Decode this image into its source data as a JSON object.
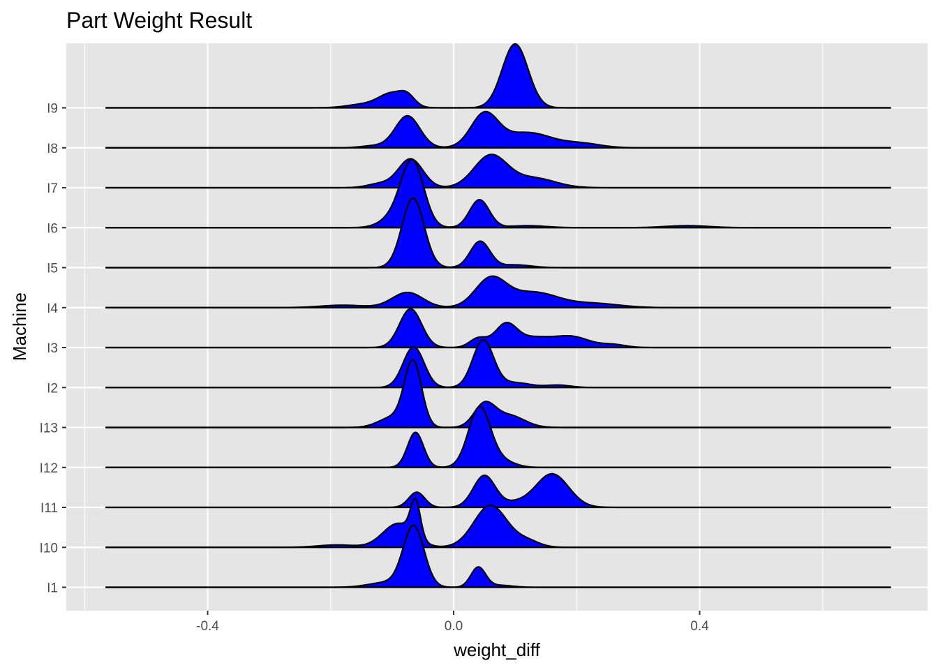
{
  "chart_data": {
    "type": "ridgeline",
    "title": "Part Weight Result",
    "xlabel": "weight_diff",
    "ylabel": "Machine",
    "x_ticks": [
      -0.4,
      0.0,
      0.4
    ],
    "x_tick_labels": [
      "-0.4",
      "0.0",
      "0.4"
    ],
    "xlim": [
      -0.64,
      0.76
    ],
    "x_extent": [
      -0.566,
      0.711
    ],
    "grid": true,
    "fill_color": "#0000ff",
    "panel_color": "#e5e5e5",
    "grid_color": "#ffffff",
    "categories": [
      "I1",
      "I10",
      "I11",
      "I12",
      "I13",
      "I2",
      "I3",
      "I4",
      "I5",
      "I6",
      "I7",
      "I8",
      "I9"
    ],
    "series": [
      {
        "label": "I1",
        "peaks": [
          [
            -0.11,
            0.12,
            0.028
          ],
          [
            -0.065,
            1.52,
            0.017
          ],
          [
            0.04,
            0.5,
            0.012
          ],
          [
            0.075,
            0.05,
            0.02
          ]
        ]
      },
      {
        "label": "I10",
        "peaks": [
          [
            -0.19,
            0.06,
            0.03
          ],
          [
            -0.09,
            0.6,
            0.025
          ],
          [
            -0.062,
            0.9,
            0.008
          ],
          [
            0.06,
            1.05,
            0.027
          ],
          [
            0.12,
            0.15,
            0.02
          ]
        ]
      },
      {
        "label": "I11",
        "peaks": [
          [
            -0.06,
            0.38,
            0.013
          ],
          [
            0.05,
            0.8,
            0.018
          ],
          [
            0.16,
            0.84,
            0.027
          ],
          [
            0.1,
            0.1,
            0.02
          ]
        ]
      },
      {
        "label": "I12",
        "peaks": [
          [
            -0.062,
            0.88,
            0.013
          ],
          [
            0.042,
            1.5,
            0.018
          ],
          [
            0.08,
            0.15,
            0.02
          ]
        ]
      },
      {
        "label": "I13",
        "peaks": [
          [
            -0.1,
            0.25,
            0.022
          ],
          [
            -0.066,
            1.62,
            0.014
          ],
          [
            0.05,
            0.56,
            0.017
          ],
          [
            0.09,
            0.3,
            0.025
          ]
        ]
      },
      {
        "label": "I2",
        "peaks": [
          [
            -0.065,
            1.02,
            0.017
          ],
          [
            0.048,
            1.18,
            0.017
          ],
          [
            0.1,
            0.12,
            0.025
          ],
          [
            0.17,
            0.06,
            0.02
          ]
        ]
      },
      {
        "label": "I3",
        "peaks": [
          [
            -0.07,
            0.97,
            0.018
          ],
          [
            0.04,
            0.23,
            0.014
          ],
          [
            0.085,
            0.58,
            0.018
          ],
          [
            0.19,
            0.28,
            0.03
          ],
          [
            0.26,
            0.07,
            0.02
          ],
          [
            0.13,
            0.22,
            0.025
          ]
        ]
      },
      {
        "label": "I4",
        "peaks": [
          [
            -0.18,
            0.06,
            0.035
          ],
          [
            -0.075,
            0.38,
            0.025
          ],
          [
            0.06,
            0.7,
            0.025
          ],
          [
            0.13,
            0.38,
            0.04
          ],
          [
            0.23,
            0.1,
            0.04
          ]
        ]
      },
      {
        "label": "I5",
        "peaks": [
          [
            -0.066,
            1.74,
            0.018
          ],
          [
            0.043,
            0.66,
            0.016
          ],
          [
            0.1,
            0.07,
            0.025
          ]
        ]
      },
      {
        "label": "I6",
        "peaks": [
          [
            -0.066,
            1.4,
            0.018
          ],
          [
            -0.085,
            0.4,
            0.025
          ],
          [
            0.042,
            0.7,
            0.016
          ],
          [
            0.12,
            0.05,
            0.03
          ],
          [
            0.38,
            0.05,
            0.035
          ]
        ]
      },
      {
        "label": "I7",
        "peaks": [
          [
            -0.07,
            0.72,
            0.02
          ],
          [
            -0.12,
            0.1,
            0.02
          ],
          [
            0.06,
            0.8,
            0.027
          ],
          [
            0.13,
            0.24,
            0.035
          ]
        ]
      },
      {
        "label": "I8",
        "peaks": [
          [
            -0.075,
            0.8,
            0.02
          ],
          [
            -0.13,
            0.05,
            0.02
          ],
          [
            0.05,
            0.82,
            0.022
          ],
          [
            0.12,
            0.38,
            0.04
          ],
          [
            0.21,
            0.1,
            0.03
          ]
        ]
      },
      {
        "label": "I9",
        "peaks": [
          [
            -0.1,
            0.36,
            0.022
          ],
          [
            -0.15,
            0.08,
            0.025
          ],
          [
            -0.075,
            0.2,
            0.012
          ],
          [
            0.1,
            1.6,
            0.021
          ]
        ]
      }
    ]
  }
}
